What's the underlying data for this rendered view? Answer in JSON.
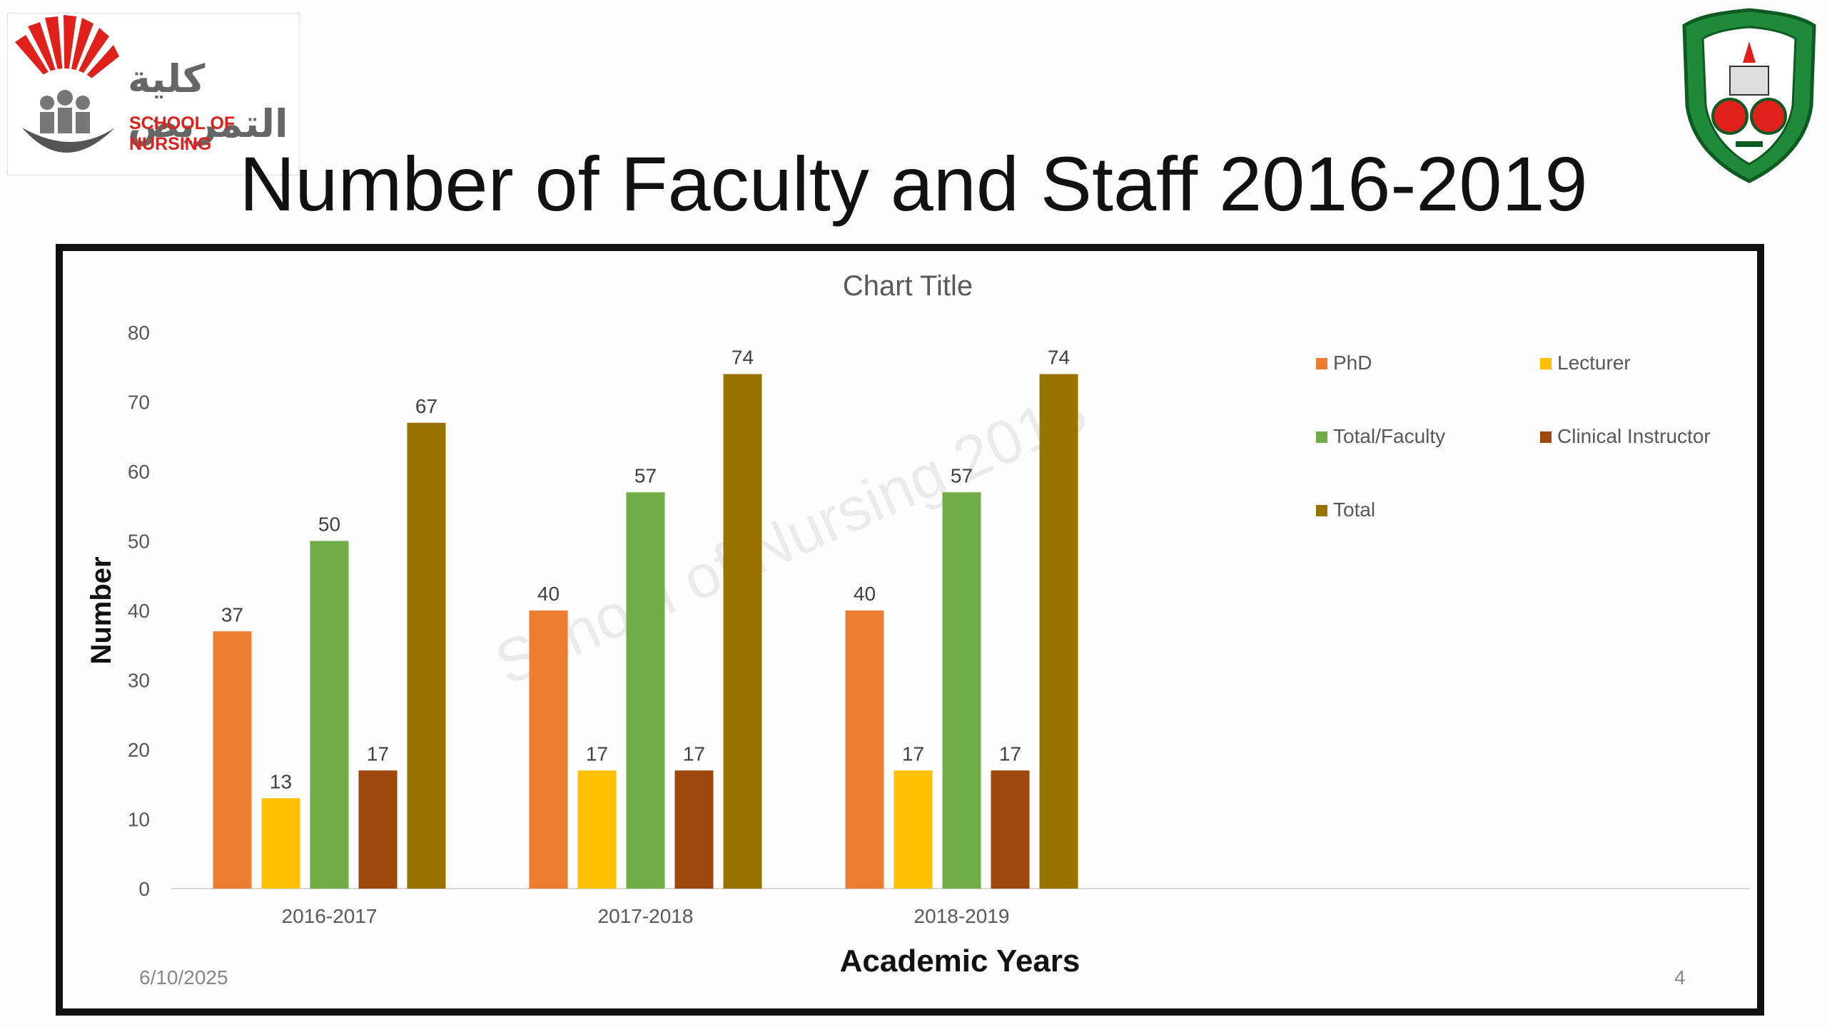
{
  "slide": {
    "title": "Number of Faculty and Staff 2016-2019",
    "date": "6/10/2025",
    "page": "4",
    "logo_left": {
      "arabic": "كلية التمريض",
      "english": "SCHOOL OF NURSING"
    },
    "watermark": "School of Nursing 2018"
  },
  "colors": {
    "PhD": "#ed7d31",
    "Lecturer": "#ffc000",
    "Total/Faculty": "#70ad47",
    "Clinical Instructor": "#9e480e",
    "Total": "#997300"
  },
  "chart_data": {
    "type": "bar",
    "title": "Chart Title",
    "xlabel": "Academic Years",
    "ylabel": "Number",
    "ylim": [
      0,
      80
    ],
    "yticks": [
      0,
      10,
      20,
      30,
      40,
      50,
      60,
      70,
      80
    ],
    "categories": [
      "2016-2017",
      "2017-2018",
      "2018-2019"
    ],
    "series": [
      {
        "name": "PhD",
        "values": [
          37,
          40,
          40
        ]
      },
      {
        "name": "Lecturer",
        "values": [
          13,
          17,
          17
        ]
      },
      {
        "name": "Total/Faculty",
        "values": [
          50,
          57,
          57
        ]
      },
      {
        "name": "Clinical Instructor",
        "values": [
          17,
          17,
          17
        ]
      },
      {
        "name": "Total",
        "values": [
          67,
          74,
          74
        ]
      }
    ],
    "legend_position": "right",
    "grid": false
  }
}
